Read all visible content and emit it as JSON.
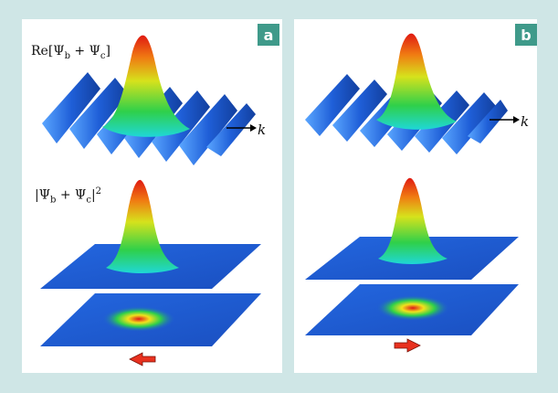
{
  "panels": [
    {
      "label": "a",
      "top_equation": {
        "prefix": "Re[",
        "psi1": "Ψ",
        "sub1": "b",
        "plus": " + ",
        "psi2": "Ψ",
        "sub2": "c",
        "suffix": "]"
      },
      "bottom_equation": {
        "prefix": "|",
        "psi1": "Ψ",
        "sub1": "b",
        "plus": " + ",
        "psi2": "Ψ",
        "sub2": "c",
        "suffix": "|",
        "power": "2"
      },
      "wave_vector_label": "k",
      "motion_direction": "left"
    },
    {
      "label": "b",
      "wave_vector_label": "k",
      "motion_direction": "right"
    }
  ],
  "colors": {
    "background": "#cfe6e6",
    "panel": "#ffffff",
    "badge": "#3f9a8a",
    "wave_blue": "#1a5fd6",
    "arrow_red": "#e8311f"
  }
}
